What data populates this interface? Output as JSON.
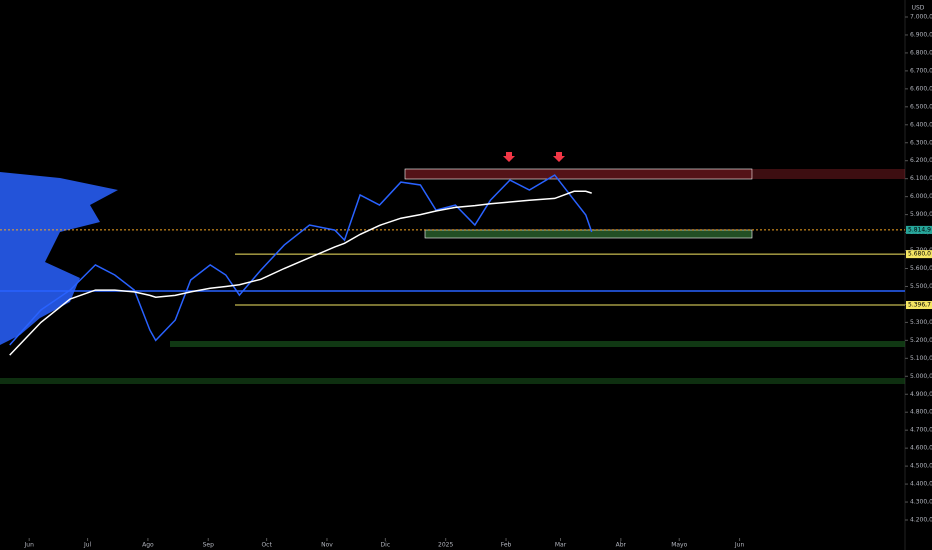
{
  "chart_data": {
    "type": "line",
    "currency": "USD",
    "x": [
      -10,
      6,
      21,
      34,
      44,
      54,
      62,
      65,
      75,
      83,
      93,
      101,
      108,
      119,
      131,
      144,
      157,
      162,
      170,
      180,
      191,
      201,
      209,
      219,
      229,
      237,
      247,
      257,
      270,
      280,
      286,
      289
    ],
    "series": [
      {
        "color": "#2962ff",
        "values": [
          5174,
          5369,
          5480,
          5620,
          5564,
          5480,
          5257,
          5200,
          5313,
          5536,
          5620,
          5564,
          5452,
          5591,
          5730,
          5842,
          5814,
          5758,
          6009,
          5953,
          6081,
          6065,
          5925,
          5953,
          5842,
          5981,
          6092,
          6037,
          6120,
          5981,
          5898,
          5803
        ]
      },
      {
        "color": "#ffffff",
        "values": [
          5118,
          5300,
          5430,
          5480,
          5480,
          5470,
          5450,
          5440,
          5450,
          5470,
          5490,
          5500,
          5510,
          5540,
          5600,
          5660,
          5720,
          5740,
          5790,
          5840,
          5880,
          5900,
          5920,
          5940,
          5950,
          5960,
          5970,
          5980,
          5990,
          6030,
          6030,
          6020
        ]
      }
    ],
    "xlim": [
      -15,
      450
    ],
    "xticks": [
      {
        "value": 0,
        "label": "Jun"
      },
      {
        "value": 30,
        "label": "Jul"
      },
      {
        "value": 61,
        "label": "Ago"
      },
      {
        "value": 92,
        "label": "Sep"
      },
      {
        "value": 122,
        "label": "Oct"
      },
      {
        "value": 153,
        "label": "Nov"
      },
      {
        "value": 183,
        "label": "Dic"
      },
      {
        "value": 214,
        "label": "2025"
      },
      {
        "value": 245,
        "label": "Feb"
      },
      {
        "value": 273,
        "label": "Mar"
      },
      {
        "value": 304,
        "label": "Abr"
      },
      {
        "value": 334,
        "label": "Mayo"
      },
      {
        "value": 365,
        "label": "Jun"
      }
    ],
    "ylim": [
      4200,
      7000
    ],
    "yticks": [
      {
        "value": 7000,
        "label": "7.000,0"
      },
      {
        "value": 6900,
        "label": "6.900,0"
      },
      {
        "value": 6800,
        "label": "6.800,0"
      },
      {
        "value": 6700,
        "label": "6.700,0"
      },
      {
        "value": 6600,
        "label": "6.600,0"
      },
      {
        "value": 6500,
        "label": "6.500,0"
      },
      {
        "value": 6400,
        "label": "6.400,0"
      },
      {
        "value": 6300,
        "label": "6.300,0"
      },
      {
        "value": 6200,
        "label": "6.200,0"
      },
      {
        "value": 6100,
        "label": "6.100,0"
      },
      {
        "value": 6000,
        "label": "6.000,0"
      },
      {
        "value": 5900,
        "label": "5.900,0"
      },
      {
        "value": 5800,
        "label": "5.800,0"
      },
      {
        "value": 5700,
        "label": "5.700,0"
      },
      {
        "value": 5600,
        "label": "5.600,0"
      },
      {
        "value": 5500,
        "label": "5.500,0"
      },
      {
        "value": 5400,
        "label": "5.400,0"
      },
      {
        "value": 5300,
        "label": "5.300,0"
      },
      {
        "value": 5200,
        "label": "5.200,0"
      },
      {
        "value": 5100,
        "label": "5.100,0"
      },
      {
        "value": 5000,
        "label": "5.000,0"
      },
      {
        "value": 4900,
        "label": "4.900,0"
      },
      {
        "value": 4800,
        "label": "4.800,0"
      },
      {
        "value": 4700,
        "label": "4.700,0"
      },
      {
        "value": 4600,
        "label": "4.600,0"
      },
      {
        "value": 4500,
        "label": "4.500,0"
      },
      {
        "value": 4400,
        "label": "4.400,0"
      },
      {
        "value": 4300,
        "label": "4.300,0"
      },
      {
        "value": 4200,
        "label": "4.200,0"
      }
    ],
    "levels": [
      {
        "value": 5814.9,
        "label": "5.814,9",
        "color": "#f5a623",
        "box": "#26a69a"
      },
      {
        "value": 5680,
        "label": "5.680,0",
        "color": "#f5e663",
        "box": "#f5e663"
      },
      {
        "value": 5396.7,
        "label": "5.396,7",
        "color": "#f5e663",
        "box": "#f5e663"
      }
    ]
  }
}
